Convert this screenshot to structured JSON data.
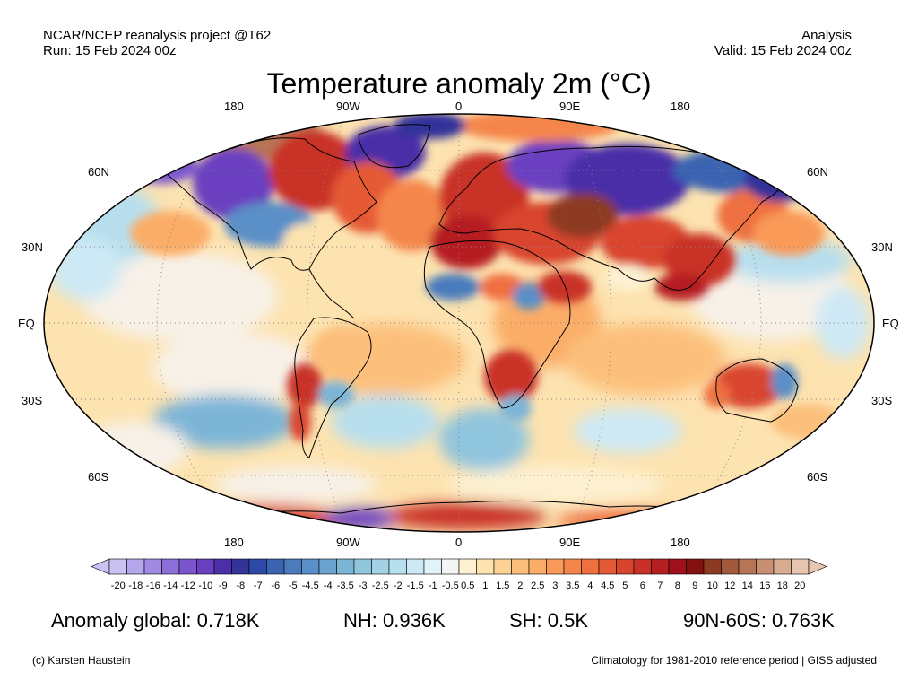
{
  "header": {
    "source": "NCAR/NCEP reanalysis project @T62",
    "run": "Run: 15 Feb 2024 00z",
    "kind": "Analysis",
    "valid": "Valid: 15 Feb 2024 00z"
  },
  "title": "Temperature anomaly 2m (°C)",
  "map": {
    "projection": "Robinson",
    "top_lon_labels": [
      "180",
      "90W",
      "0",
      "90E",
      "180"
    ],
    "bottom_lon_labels": [
      "180",
      "90W",
      "0",
      "90E",
      "180"
    ],
    "lat_labels_left": [
      "60N",
      "30N",
      "EQ",
      "30S",
      "60S"
    ],
    "lat_labels_right": [
      "60N",
      "30N",
      "EQ",
      "30S",
      "60S"
    ]
  },
  "colorbar": {
    "ticks": [
      "-20",
      "-18",
      "-16",
      "-14",
      "-12",
      "-10",
      "-9",
      "-8",
      "-7",
      "-6",
      "-5",
      "-4.5",
      "-4",
      "-3.5",
      "-3",
      "-2.5",
      "-2",
      "-1.5",
      "-1",
      "-0.5",
      "0.5",
      "1",
      "1.5",
      "2",
      "2.5",
      "3",
      "3.5",
      "4",
      "4.5",
      "5",
      "6",
      "7",
      "8",
      "9",
      "10",
      "12",
      "14",
      "16",
      "18",
      "20"
    ],
    "colors": [
      "#c9c2f2",
      "#b4a6ec",
      "#a08ae3",
      "#8c6fd9",
      "#7a55cd",
      "#6a3fc0",
      "#4a2fa8",
      "#33339a",
      "#2f4aa6",
      "#3a63b2",
      "#4a7bbd",
      "#5a8fc7",
      "#6ba3cf",
      "#7db5d7",
      "#90c5de",
      "#a3d2e6",
      "#b8dfee",
      "#cde9f5",
      "#e2f2f9",
      "#f4f4f4",
      "#fdf1d2",
      "#fde3b0",
      "#fdd294",
      "#fcc07c",
      "#fbad68",
      "#f99a58",
      "#f5864b",
      "#ef703f",
      "#e55a36",
      "#d9442f",
      "#c93028",
      "#b51f22",
      "#9e101a",
      "#841010",
      "#8c3a22",
      "#a35a3c",
      "#b87456",
      "#c98f72",
      "#d9ab91",
      "#e7c5b0"
    ]
  },
  "stats": {
    "global": "Anomaly global: 0.718K",
    "nh": "NH: 0.936K",
    "sh": "SH: 0.5K",
    "polar": "90N-60S: 0.763K"
  },
  "footer": {
    "credit": "(c) Karsten Haustein",
    "climatology": "Climatology for 1981-2010 reference period | GISS adjusted"
  }
}
